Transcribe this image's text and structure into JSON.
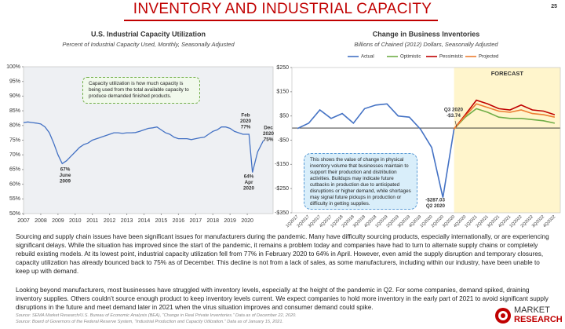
{
  "title": "INVENTORY AND INDUSTRIAL CAPACITY",
  "page_number": "25",
  "paragraphs": [
    "Sourcing and supply chain issues have been significant issues for manufacturers during the pandemic. Many have difficulty sourcing products, especially internationally, or are experiencing significant delays. While the situation has improved since the start of the pandemic, it remains a problem today and companies have had to turn to alternate supply chains or completely rebuild existing models. At its lowest point, industrial capacity utilization fell from 77% in February 2020 to 64% in April. However, even amid the supply disruption and temporary closures, capacity utilization has already bounced back to 75% as of December. This decline is not from a lack of sales, as some manufacturers, including within our industry, have been unable to keep up with demand.",
    "Looking beyond manufacturers, most businesses have struggled with inventory levels, especially at the height of the pandemic in Q2. For some companies, demand spiked, draining inventory supplies. Others couldn’t source enough product to keep inventory levels current. We expect companies to hold more inventory in the early part of 2021 to avoid significant supply disruptions in the future and meet demand later in 2021 when the virus situation improves and consumer demand could spike."
  ],
  "sources": [
    "Source: SEMA Market Research/U.S. Bureau of Economic Analysis (BEA), “Change in Real Private Inventories.” Data as of December 22, 2020.",
    "Source: Board of Governors of the Federal Reserve System, “Industrial Production and Capacity Utilization.” Data as of January 15, 2021."
  ],
  "logo": [
    "MARKET",
    "RESEARCH"
  ],
  "chart_data": [
    {
      "type": "line",
      "title": "U.S. Industrial Capacity Utilization",
      "subtitle": "Percent of Industrial Capacity Used, Monthly, Seasonally Adjusted",
      "x": [
        2007.0,
        2007.25,
        2007.5,
        2007.75,
        2008.0,
        2008.25,
        2008.5,
        2008.75,
        2009.0,
        2009.25,
        2009.5,
        2009.75,
        2010.0,
        2010.25,
        2010.5,
        2010.75,
        2011.0,
        2011.25,
        2011.5,
        2011.75,
        2012.0,
        2012.25,
        2012.5,
        2012.75,
        2013.0,
        2013.25,
        2013.5,
        2013.75,
        2014.0,
        2014.25,
        2014.5,
        2014.75,
        2015.0,
        2015.25,
        2015.5,
        2015.75,
        2016.0,
        2016.25,
        2016.5,
        2016.75,
        2017.0,
        2017.25,
        2017.5,
        2017.75,
        2018.0,
        2018.25,
        2018.5,
        2018.75,
        2019.0,
        2019.25,
        2019.5,
        2019.75,
        2020.1,
        2020.3,
        2020.6,
        2020.95
      ],
      "series": [
        {
          "name": "Capacity Utilization",
          "color": "#4472c4",
          "values": [
            81,
            81.2,
            81,
            80.8,
            80.5,
            79.5,
            77.5,
            74,
            70,
            67,
            68,
            69.5,
            71,
            72.5,
            73.5,
            74,
            75,
            75.5,
            76,
            76.5,
            77,
            77.5,
            77.5,
            77.3,
            77.5,
            77.5,
            77.6,
            78,
            78.5,
            79,
            79.2,
            79.5,
            78.5,
            77.5,
            77,
            76,
            75.5,
            75.5,
            75.5,
            75.2,
            75.5,
            75.8,
            76,
            77,
            78,
            78.5,
            79.5,
            79.5,
            79,
            78,
            77.5,
            77,
            77,
            64,
            71,
            75
          ]
        }
      ],
      "xlim": [
        2007,
        2021.5
      ],
      "xticks": [
        2007,
        2008,
        2009,
        2010,
        2011,
        2012,
        2013,
        2014,
        2015,
        2016,
        2017,
        2018,
        2019,
        2020
      ],
      "ylim": [
        50,
        100
      ],
      "yticks": [
        {
          "value": 50,
          "label": "50%"
        },
        {
          "value": 55,
          "label": "55%"
        },
        {
          "value": 60,
          "label": "60%"
        },
        {
          "value": 65,
          "label": "65%"
        },
        {
          "value": 70,
          "label": "70%"
        },
        {
          "value": 75,
          "label": "75%"
        },
        {
          "value": 80,
          "label": "80%"
        },
        {
          "value": 85,
          "label": "85%"
        },
        {
          "value": 90,
          "label": "90%"
        },
        {
          "value": 95,
          "label": "95%"
        },
        {
          "value": 100,
          "label": "100%"
        }
      ],
      "grid": false,
      "annotations": [
        [
          "67%",
          "June",
          "2009"
        ],
        [
          "Feb",
          "2020",
          "77%"
        ],
        [
          "64%",
          "Apr",
          "2020"
        ],
        [
          "Dec",
          "2020",
          "75%"
        ]
      ],
      "note": "Capacity utilization is how much capacity is being used from the total available capacity to produce demanded finished products."
    },
    {
      "type": "line",
      "title": "Change in Business Inventories",
      "subtitle": "Billions of Chained (2012) Dollars, Seasonally Adjusted",
      "categories": [
        "1Q2017",
        "2Q2017",
        "3Q2017",
        "4Q2017",
        "1Q2018",
        "2Q2018",
        "3Q2018",
        "4Q2018",
        "1Q2019",
        "2Q2019",
        "3Q2019",
        "4Q2019",
        "1Q2020",
        "2Q2020",
        "3Q2020",
        "4Q2020",
        "1Q2021",
        "2Q2021",
        "3Q2021",
        "4Q2021",
        "1Q2022",
        "2Q2022",
        "3Q2022",
        "4Q2022"
      ],
      "series": [
        {
          "name": "Actual",
          "color": "#4472c4",
          "values": [
            -2,
            20,
            75,
            40,
            60,
            20,
            80,
            95,
            100,
            50,
            45,
            -5,
            -80,
            -287.03,
            -3.74,
            null,
            null,
            null,
            null,
            null,
            null,
            null,
            null,
            null
          ]
        },
        {
          "name": "Optimistic",
          "color": "#70ad47",
          "values": [
            null,
            null,
            null,
            null,
            null,
            null,
            null,
            null,
            null,
            null,
            null,
            null,
            null,
            null,
            -3.74,
            45,
            80,
            65,
            45,
            40,
            40,
            35,
            30,
            20
          ]
        },
        {
          "name": "Pessimistic",
          "color": "#c00000",
          "values": [
            null,
            null,
            null,
            null,
            null,
            null,
            null,
            null,
            null,
            null,
            null,
            null,
            null,
            null,
            -3.74,
            55,
            115,
            100,
            80,
            75,
            95,
            75,
            70,
            55
          ]
        },
        {
          "name": "Projected",
          "color": "#ed7d31",
          "values": [
            null,
            null,
            null,
            null,
            null,
            null,
            null,
            null,
            null,
            null,
            null,
            null,
            null,
            null,
            -3.74,
            50,
            100,
            85,
            70,
            65,
            75,
            60,
            55,
            45
          ]
        }
      ],
      "ylim": [
        -350,
        250
      ],
      "yticks": [
        {
          "value": -350,
          "label": "-$350"
        },
        {
          "value": -250,
          "label": "-$250"
        },
        {
          "value": -150,
          "label": "-$150"
        },
        {
          "value": -50,
          "label": "-$50"
        },
        {
          "value": 50,
          "label": "$50"
        },
        {
          "value": 150,
          "label": "$150"
        },
        {
          "value": 250,
          "label": "$250"
        }
      ],
      "grid": false,
      "legend": "top",
      "forecast_label": "FORECAST",
      "annotations": [
        [
          "Q3 2020",
          "-$3.74"
        ],
        [
          "-$287.03",
          "Q2 2020"
        ]
      ],
      "note": "This shows the value of change in physical inventory volume that businesses maintain to support their production and distribution activities. Buildups may indicate future cutbacks in production due to anticipated disruptions or higher demand, while shortages may signal future pickups in production or difficulty in getting supplies."
    }
  ]
}
